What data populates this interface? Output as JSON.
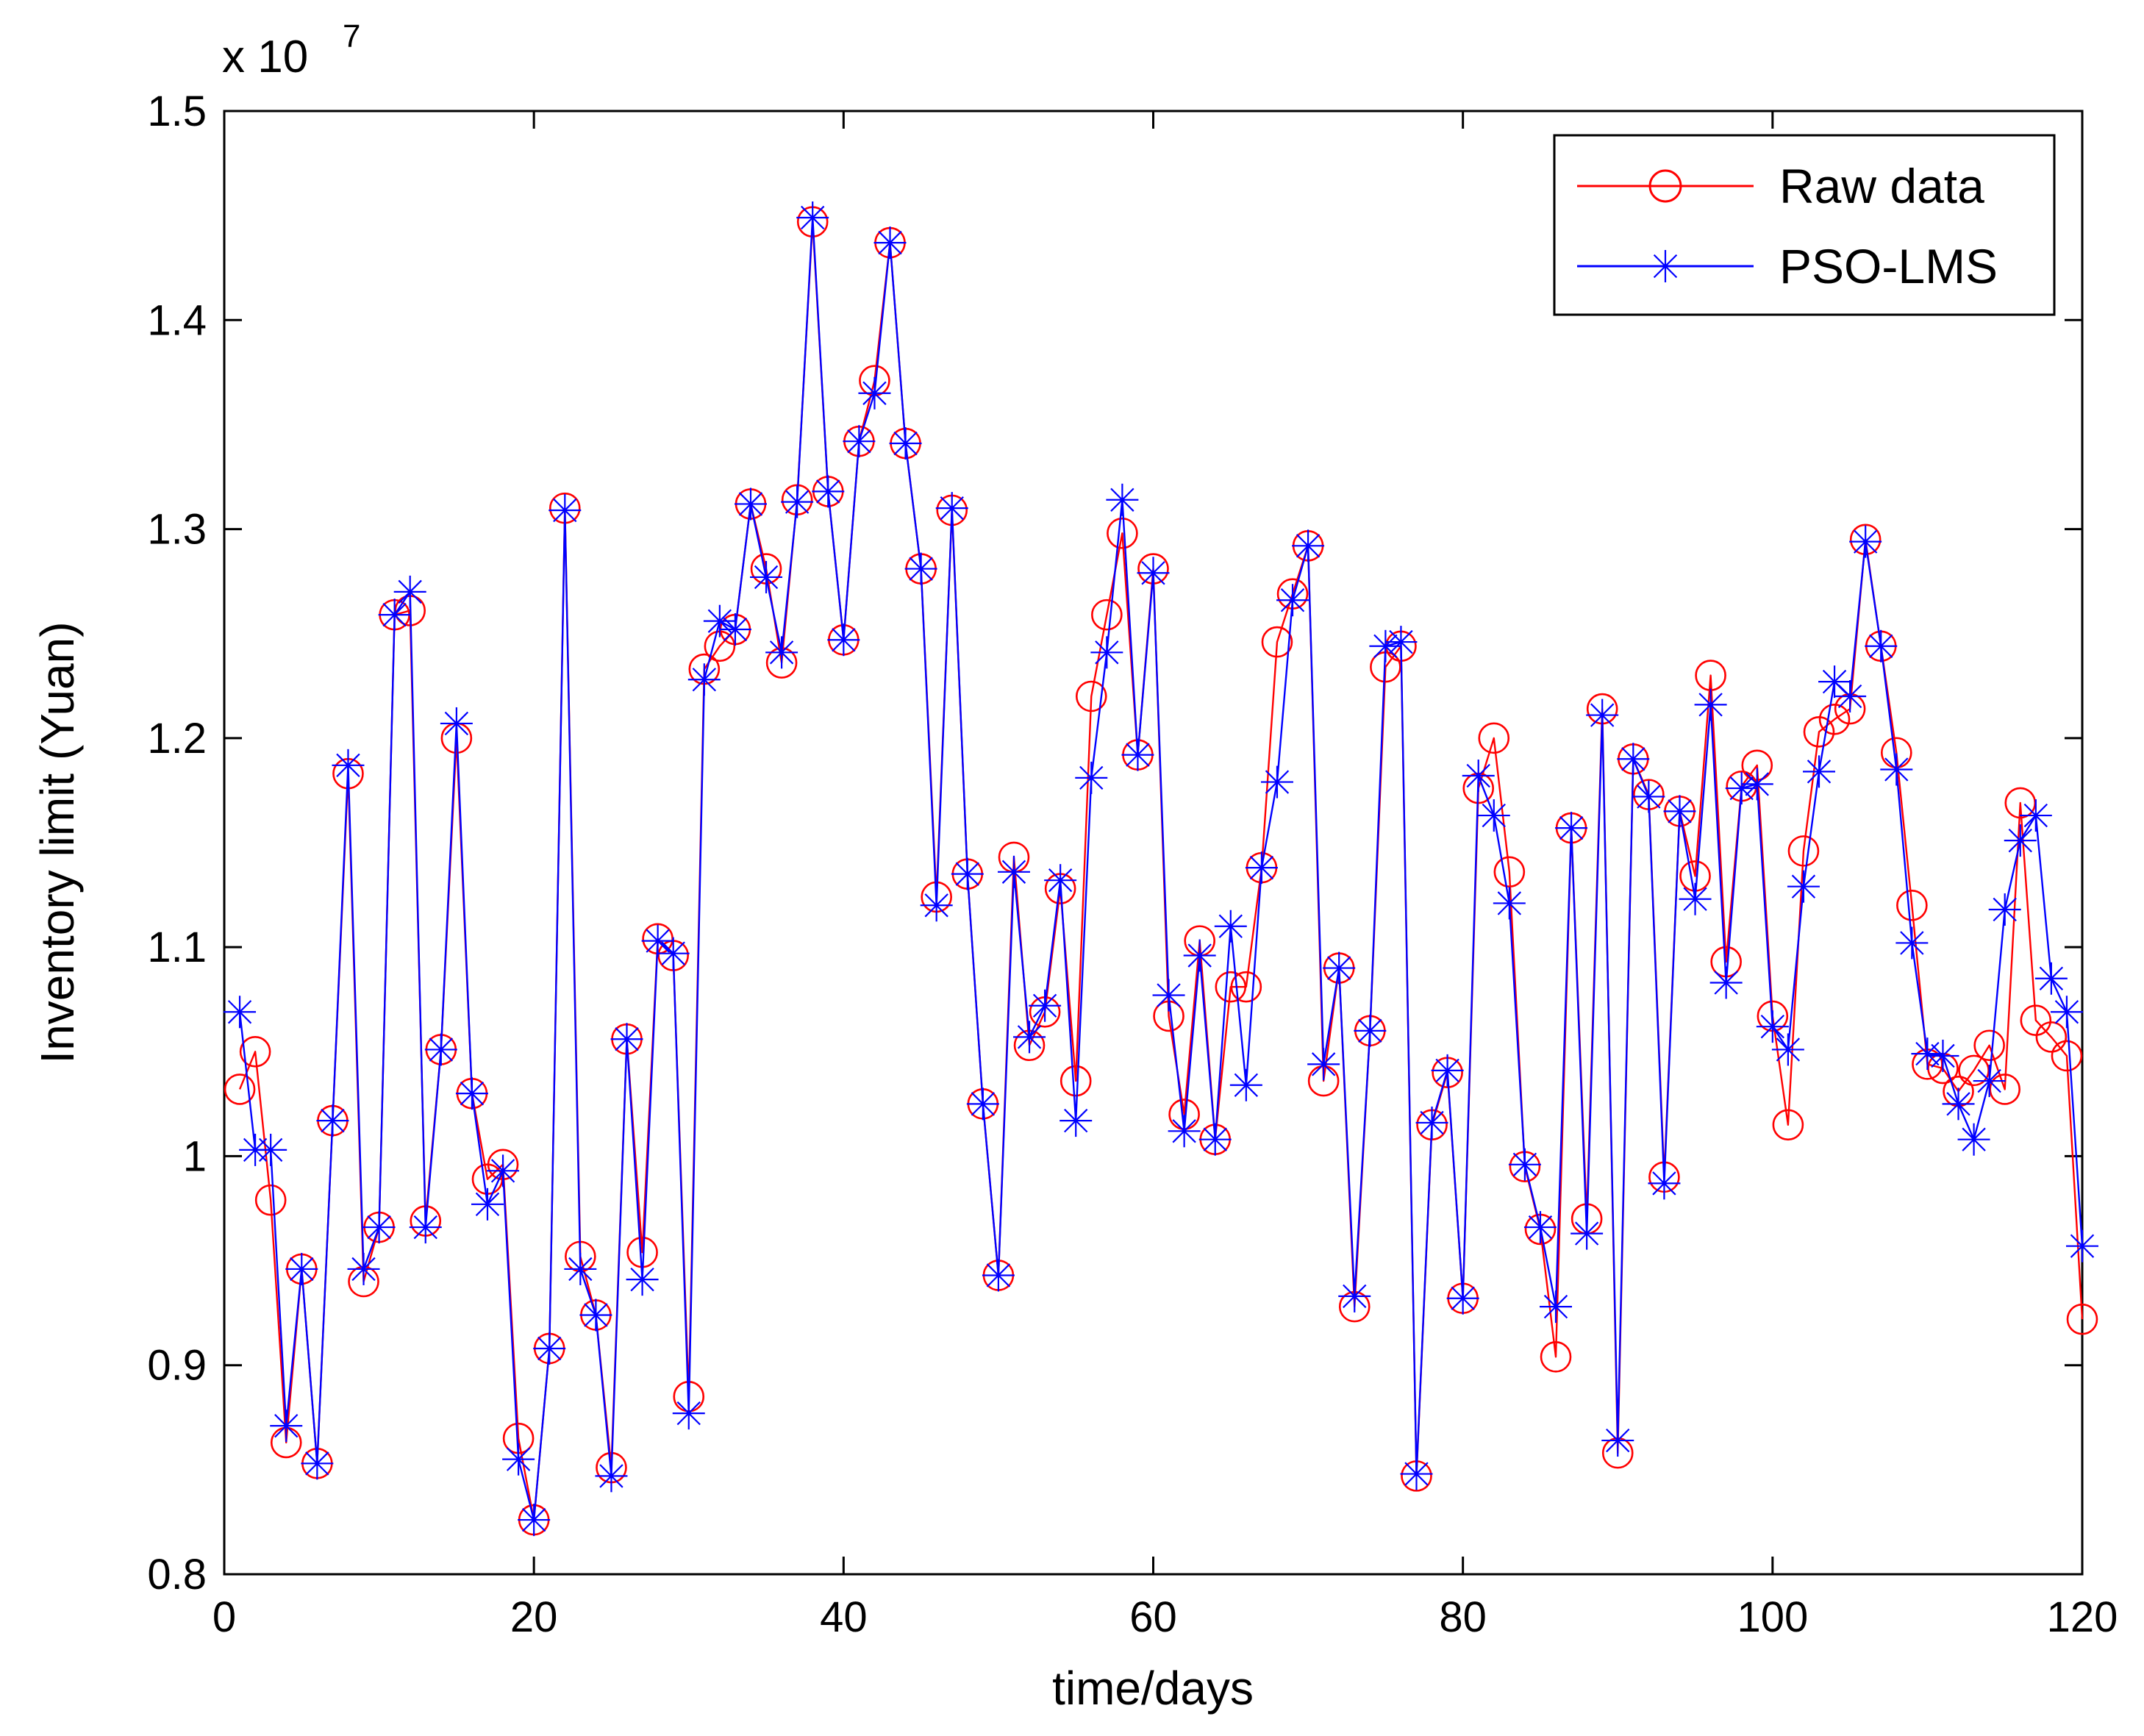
{
  "chart_data": {
    "type": "line",
    "xlabel": "time/days",
    "ylabel": "Inventory limit (Yuan)",
    "y_multiplier": {
      "base": "x 10",
      "exponent": "7"
    },
    "xlim": [
      0,
      120
    ],
    "ylim": [
      0.8,
      1.5
    ],
    "xticks": [
      0,
      20,
      40,
      60,
      80,
      100,
      120
    ],
    "xtick_labels": [
      "0",
      "20",
      "40",
      "60",
      "80",
      "100",
      "120"
    ],
    "yticks": [
      0.8,
      0.9,
      1.0,
      1.1,
      1.2,
      1.3,
      1.4,
      1.5
    ],
    "ytick_labels": [
      "0.8",
      "0.9",
      "1",
      "1.1",
      "1.2",
      "1.3",
      "1.4",
      "1.5"
    ],
    "grid": false,
    "legend_position": "top-right",
    "x": [
      1,
      2,
      3,
      4,
      5,
      6,
      7,
      8,
      9,
      10,
      11,
      12,
      13,
      14,
      15,
      16,
      17,
      18,
      19,
      20,
      21,
      22,
      23,
      24,
      25,
      26,
      27,
      28,
      29,
      30,
      31,
      32,
      33,
      34,
      35,
      36,
      37,
      38,
      39,
      40,
      41,
      42,
      43,
      44,
      45,
      46,
      47,
      48,
      49,
      50,
      51,
      52,
      53,
      54,
      55,
      56,
      57,
      58,
      59,
      60,
      61,
      62,
      63,
      64,
      65,
      66,
      67,
      68,
      69,
      70,
      71,
      72,
      73,
      74,
      75,
      76,
      77,
      78,
      79,
      80,
      81,
      82,
      83,
      84,
      85,
      86,
      87,
      88,
      89,
      90,
      91,
      92,
      93,
      94,
      95,
      96,
      97,
      98,
      99,
      100,
      101,
      102,
      103,
      104,
      105,
      106,
      107,
      108,
      109,
      110,
      111,
      112,
      113,
      114,
      115,
      116,
      117,
      118,
      119,
      120
    ],
    "series": [
      {
        "name": "Raw data",
        "color": "#ff0000",
        "marker": "circle",
        "values": [
          1.032,
          1.05,
          0.979,
          0.863,
          0.946,
          0.853,
          1.017,
          1.183,
          0.94,
          0.966,
          1.259,
          1.261,
          0.969,
          1.051,
          1.2,
          1.03,
          0.989,
          0.996,
          0.865,
          0.826,
          0.908,
          1.31,
          0.952,
          0.924,
          0.851,
          1.056,
          0.954,
          1.104,
          1.096,
          0.885,
          1.233,
          1.244,
          1.252,
          1.312,
          1.281,
          1.236,
          1.314,
          1.447,
          1.318,
          1.247,
          1.342,
          1.371,
          1.437,
          1.341,
          1.281,
          1.124,
          1.309,
          1.135,
          1.025,
          0.943,
          1.143,
          1.053,
          1.069,
          1.128,
          1.036,
          1.22,
          1.259,
          1.298,
          1.192,
          1.281,
          1.067,
          1.02,
          1.103,
          1.008,
          1.081,
          1.081,
          1.138,
          1.246,
          1.269,
          1.292,
          1.036,
          1.09,
          0.928,
          1.06,
          1.234,
          1.244,
          0.847,
          1.015,
          1.04,
          0.932,
          1.176,
          1.2,
          1.136,
          0.995,
          0.965,
          0.904,
          1.157,
          0.97,
          1.214,
          0.858,
          1.19,
          1.173,
          0.99,
          1.165,
          1.134,
          1.23,
          1.093,
          1.177,
          1.187,
          1.067,
          1.015,
          1.146,
          1.203,
          1.209,
          1.214,
          1.295,
          1.244,
          1.193,
          1.12,
          1.044,
          1.042,
          1.031,
          1.041,
          1.053,
          1.032,
          1.169,
          1.065,
          1.057,
          1.048,
          0.922
        ]
      },
      {
        "name": "PSO-LMS",
        "color": "#0000ff",
        "marker": "asterisk",
        "values": [
          1.069,
          1.003,
          1.003,
          0.871,
          0.946,
          0.853,
          1.017,
          1.187,
          0.946,
          0.966,
          1.259,
          1.27,
          0.966,
          1.051,
          1.207,
          1.03,
          0.977,
          0.993,
          0.855,
          0.826,
          0.908,
          1.309,
          0.946,
          0.924,
          0.847,
          1.056,
          0.941,
          1.103,
          1.097,
          0.877,
          1.228,
          1.256,
          1.252,
          1.312,
          1.277,
          1.241,
          1.313,
          1.449,
          1.318,
          1.247,
          1.342,
          1.365,
          1.437,
          1.341,
          1.281,
          1.12,
          1.31,
          1.135,
          1.025,
          0.943,
          1.136,
          1.057,
          1.072,
          1.132,
          1.017,
          1.181,
          1.241,
          1.314,
          1.192,
          1.279,
          1.077,
          1.012,
          1.096,
          1.008,
          1.11,
          1.034,
          1.138,
          1.179,
          1.266,
          1.292,
          1.044,
          1.09,
          0.933,
          1.06,
          1.244,
          1.246,
          0.848,
          1.016,
          1.041,
          0.932,
          1.182,
          1.163,
          1.121,
          0.996,
          0.966,
          0.928,
          1.157,
          0.963,
          1.211,
          0.864,
          1.19,
          1.172,
          0.987,
          1.165,
          1.123,
          1.216,
          1.083,
          1.176,
          1.178,
          1.062,
          1.051,
          1.129,
          1.184,
          1.227,
          1.22,
          1.294,
          1.244,
          1.185,
          1.102,
          1.049,
          1.048,
          1.025,
          1.008,
          1.036,
          1.118,
          1.151,
          1.163,
          1.085,
          1.069,
          0.957
        ]
      }
    ]
  }
}
